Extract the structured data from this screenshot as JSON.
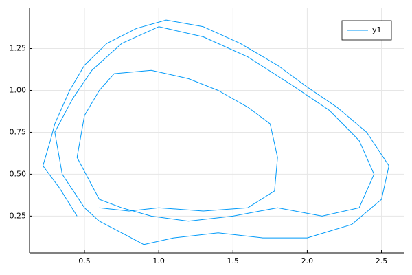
{
  "chart_data": {
    "type": "line",
    "series": [
      {
        "name": "y1",
        "color": "#009af9",
        "x": [
          0.45,
          0.33,
          0.22,
          0.27,
          0.3,
          0.4,
          0.5,
          0.65,
          0.85,
          1.05,
          1.3,
          1.55,
          1.8,
          2.0,
          2.2,
          2.4,
          2.55,
          2.5,
          2.3,
          2.0,
          1.7,
          1.4,
          1.1,
          0.9,
          0.75,
          0.6,
          0.5,
          0.35,
          0.3,
          0.42,
          0.55,
          0.75,
          1.0,
          1.3,
          1.6,
          1.9,
          2.15,
          2.35,
          2.45,
          2.35,
          2.1,
          1.8,
          1.5,
          1.2,
          0.95,
          0.75,
          0.6,
          0.45,
          0.5,
          0.6,
          0.7,
          0.95,
          1.2,
          1.4,
          1.6,
          1.75,
          1.8,
          1.78,
          1.6,
          1.3,
          1.0,
          0.8,
          0.6
        ],
        "values": [
          0.25,
          0.42,
          0.55,
          0.7,
          0.8,
          1.0,
          1.15,
          1.28,
          1.37,
          1.42,
          1.38,
          1.28,
          1.15,
          1.02,
          0.9,
          0.75,
          0.55,
          0.35,
          0.2,
          0.12,
          0.12,
          0.15,
          0.12,
          0.08,
          0.15,
          0.22,
          0.3,
          0.5,
          0.75,
          0.95,
          1.12,
          1.28,
          1.38,
          1.32,
          1.2,
          1.03,
          0.88,
          0.7,
          0.5,
          0.3,
          0.25,
          0.3,
          0.25,
          0.22,
          0.25,
          0.3,
          0.35,
          0.6,
          0.85,
          1.0,
          1.1,
          1.12,
          1.07,
          1.0,
          0.9,
          0.8,
          0.6,
          0.4,
          0.3,
          0.28,
          0.3,
          0.28,
          0.3
        ]
      }
    ],
    "xlim": [
      0.13,
      2.65
    ],
    "ylim": [
      0.03,
      1.49
    ],
    "xticks": [
      0.5,
      {
        "value": 1.0,
        "label": "1.0"
      },
      1.5,
      {
        "value": 2.0,
        "label": "2.0"
      },
      2.5
    ],
    "yticks": [
      0.25,
      {
        "value": 0.5,
        "label": "0.50"
      },
      0.75,
      {
        "value": 1.0,
        "label": "1.00"
      },
      1.25
    ],
    "grid": true,
    "legend": "top-right"
  }
}
